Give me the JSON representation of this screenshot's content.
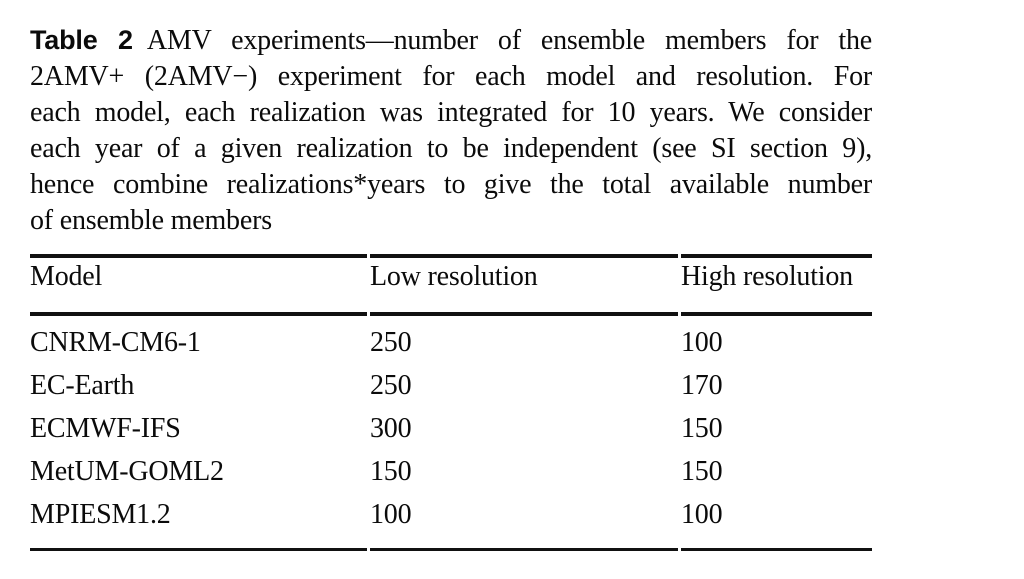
{
  "caption": {
    "label": "Table 2",
    "lines": [
      "AMV experiments—number of ensemble members for the",
      "2AMV+ (2AMV−) experiment for each model and resolution. For",
      "each model, each realization was integrated for 10 years. We consider",
      "each year of a given realization to be independent (see SI section 9),",
      "hence combine realizations*years to give the total available number",
      "of ensemble members"
    ]
  },
  "table": {
    "columns": [
      "Model",
      "Low resolution",
      "High resolution"
    ],
    "rows": [
      {
        "model": "CNRM-CM6-1",
        "low": "250",
        "high": "100"
      },
      {
        "model": "EC-Earth",
        "low": "250",
        "high": "170"
      },
      {
        "model": "ECMWF-IFS",
        "low": "300",
        "high": "150"
      },
      {
        "model": "MetUM-GOML2",
        "low": "150",
        "high": "150"
      },
      {
        "model": "MPIESM1.2",
        "low": "100",
        "high": "100"
      }
    ]
  },
  "colors": {
    "background": "#ffffff",
    "text": "#0b0b0b",
    "rule": "#111111"
  }
}
